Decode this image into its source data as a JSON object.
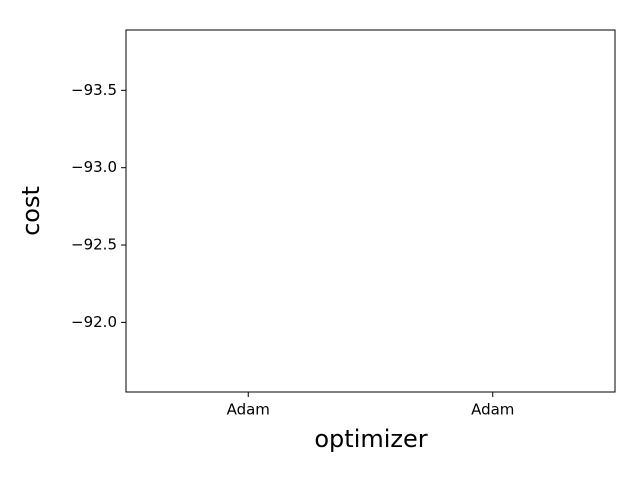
{
  "chart_data": {
    "type": "box",
    "xlabel": "optimizer",
    "ylabel": "cost",
    "categories": [
      "Adam",
      "Adam"
    ],
    "ylim": [
      -91.55,
      -93.89
    ],
    "yticks": [
      {
        "value": -93.5,
        "label": "−93.5"
      },
      {
        "value": -93.0,
        "label": "−93.0"
      },
      {
        "value": -92.5,
        "label": "−92.5"
      },
      {
        "value": -92.0,
        "label": "−92.0"
      }
    ],
    "grid": false
  }
}
